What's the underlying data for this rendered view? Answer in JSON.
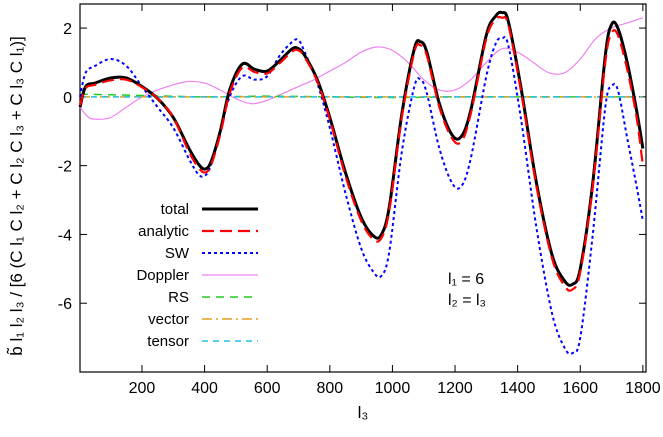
{
  "chart_data": {
    "type": "line",
    "xlabel": "l₃",
    "ylabel": "b̃ l₁ l₂ l₃ / [6 (C l₁ C l₂ + C l₂ C l₃ + C l₃ C l₁)]",
    "xlim": [
      2,
      1810
    ],
    "ylim": [
      -8,
      2.7
    ],
    "x_ticks": [
      "200",
      "400",
      "600",
      "800",
      "1000",
      "1200",
      "1400",
      "1600",
      "1800"
    ],
    "x_tick_values": [
      200,
      400,
      600,
      800,
      1000,
      1200,
      1400,
      1600,
      1800
    ],
    "y_ticks": [
      "2",
      "0",
      "-2",
      "-4",
      "-6"
    ],
    "y_tick_values": [
      2,
      0,
      -2,
      -4,
      -6
    ],
    "grid": false,
    "legend_position": "bottom-left",
    "annotations": [
      "l₁ = 6",
      "l₂ = l₃"
    ],
    "series": [
      {
        "name": "total",
        "color": "#000000",
        "dash": "solid",
        "x": [
          2,
          20,
          50,
          100,
          150,
          200,
          250,
          300,
          350,
          380,
          400,
          420,
          450,
          480,
          520,
          560,
          600,
          640,
          680,
          700,
          720,
          760,
          800,
          850,
          900,
          940,
          965,
          990,
          1030,
          1070,
          1090,
          1110,
          1150,
          1190,
          1220,
          1250,
          1300,
          1330,
          1350,
          1370,
          1410,
          1460,
          1510,
          1550,
          1575,
          1600,
          1640,
          1680,
          1700,
          1720,
          1750,
          1780,
          1800
        ],
        "values": [
          -0.3,
          0.3,
          0.4,
          0.55,
          0.55,
          0.3,
          -0.05,
          -0.6,
          -1.5,
          -1.95,
          -2.1,
          -1.9,
          -1.0,
          0.2,
          0.95,
          0.8,
          0.75,
          1.05,
          1.4,
          1.4,
          1.2,
          0.5,
          -0.6,
          -2.2,
          -3.5,
          -4.05,
          -4.0,
          -3.2,
          -0.5,
          1.4,
          1.6,
          1.3,
          -0.2,
          -1.1,
          -1.15,
          -0.4,
          1.8,
          2.35,
          2.45,
          2.2,
          0.3,
          -2.5,
          -4.6,
          -5.35,
          -5.45,
          -5.0,
          -2.5,
          1.2,
          2.1,
          2.0,
          1.0,
          -0.4,
          -1.5
        ]
      },
      {
        "name": "analytic",
        "color": "#ff0000",
        "dash": "long-dash",
        "x": [
          2,
          20,
          50,
          100,
          150,
          200,
          250,
          300,
          350,
          380,
          400,
          420,
          450,
          480,
          520,
          560,
          600,
          640,
          680,
          700,
          720,
          760,
          800,
          850,
          900,
          940,
          965,
          990,
          1030,
          1070,
          1090,
          1110,
          1150,
          1190,
          1220,
          1250,
          1300,
          1330,
          1350,
          1370,
          1410,
          1460,
          1510,
          1550,
          1575,
          1600,
          1640,
          1680,
          1700,
          1720,
          1750,
          1780,
          1800
        ],
        "values": [
          -0.25,
          0.25,
          0.35,
          0.48,
          0.5,
          0.28,
          -0.05,
          -0.6,
          -1.6,
          -2.05,
          -2.2,
          -2.0,
          -1.1,
          0.1,
          0.85,
          0.72,
          0.68,
          0.98,
          1.32,
          1.35,
          1.15,
          0.45,
          -0.65,
          -2.3,
          -3.6,
          -4.15,
          -4.1,
          -3.3,
          -0.6,
          1.3,
          1.5,
          1.2,
          -0.3,
          -1.2,
          -1.3,
          -0.5,
          1.7,
          2.25,
          2.3,
          2.1,
          0.2,
          -2.6,
          -4.7,
          -5.5,
          -5.6,
          -5.1,
          -2.6,
          1.0,
          1.85,
          1.8,
          0.8,
          -0.6,
          -2.0
        ]
      },
      {
        "name": "SW",
        "color": "#0000ff",
        "dash": "dotted",
        "x": [
          2,
          20,
          50,
          100,
          150,
          200,
          250,
          300,
          350,
          380,
          400,
          420,
          450,
          480,
          520,
          560,
          600,
          640,
          680,
          700,
          720,
          760,
          800,
          850,
          900,
          940,
          965,
          990,
          1030,
          1070,
          1090,
          1110,
          1150,
          1190,
          1220,
          1250,
          1300,
          1330,
          1350,
          1370,
          1410,
          1460,
          1510,
          1550,
          1575,
          1600,
          1640,
          1680,
          1700,
          1720,
          1750,
          1780,
          1800
        ],
        "values": [
          0.0,
          0.7,
          0.9,
          1.1,
          0.9,
          0.3,
          -0.3,
          -0.9,
          -1.8,
          -2.25,
          -2.3,
          -2.0,
          -1.0,
          0.0,
          0.6,
          0.5,
          0.6,
          1.2,
          1.6,
          1.65,
          1.3,
          0.4,
          -0.9,
          -2.8,
          -4.4,
          -5.1,
          -5.2,
          -4.5,
          -1.6,
          0.3,
          0.5,
          0.1,
          -1.5,
          -2.5,
          -2.6,
          -1.8,
          0.6,
          1.55,
          1.7,
          1.5,
          -0.6,
          -3.8,
          -6.3,
          -7.3,
          -7.45,
          -7.0,
          -4.0,
          -0.3,
          0.3,
          0.2,
          -1.2,
          -2.6,
          -3.6
        ]
      },
      {
        "name": "Doppler",
        "color": "#ee82ee",
        "dash": "solid",
        "x": [
          2,
          30,
          60,
          100,
          150,
          200,
          250,
          300,
          350,
          400,
          450,
          500,
          550,
          600,
          650,
          700,
          750,
          800,
          850,
          900,
          950,
          1000,
          1050,
          1100,
          1150,
          1200,
          1250,
          1300,
          1350,
          1400,
          1450,
          1500,
          1550,
          1600,
          1650,
          1700,
          1750,
          1800
        ],
        "values": [
          -0.3,
          -0.6,
          -0.65,
          -0.6,
          -0.3,
          0.0,
          0.2,
          0.35,
          0.45,
          0.4,
          0.2,
          -0.05,
          -0.2,
          -0.1,
          0.1,
          0.3,
          0.5,
          0.75,
          1.0,
          1.3,
          1.45,
          1.35,
          1.0,
          0.5,
          0.2,
          0.2,
          0.5,
          1.0,
          1.4,
          1.3,
          1.0,
          0.7,
          0.7,
          1.1,
          1.7,
          2.0,
          2.15,
          2.3
        ]
      },
      {
        "name": "RS",
        "color": "#22cc22",
        "dash": "dashed",
        "x": [
          2,
          200,
          400,
          600,
          800,
          1000,
          1200,
          1400,
          1600,
          1800
        ],
        "values": [
          0.08,
          0.04,
          0.0,
          0.02,
          0.0,
          -0.02,
          0.0,
          0.0,
          0.0,
          0.0
        ]
      },
      {
        "name": "vector",
        "color": "#e0a020",
        "dash": "dash-dot",
        "x": [
          2,
          200,
          400,
          600,
          800,
          1000,
          1200,
          1400,
          1600,
          1800
        ],
        "values": [
          0.0,
          0.0,
          0.0,
          0.0,
          0.0,
          0.0,
          0.0,
          0.0,
          0.0,
          0.0
        ]
      },
      {
        "name": "tensor",
        "color": "#20c0e0",
        "dash": "short-dash",
        "x": [
          2,
          200,
          400,
          600,
          800,
          1000,
          1200,
          1400,
          1600,
          1800
        ],
        "values": [
          0.0,
          0.0,
          0.0,
          0.0,
          0.0,
          0.0,
          0.0,
          0.0,
          0.0,
          0.0
        ]
      }
    ]
  }
}
